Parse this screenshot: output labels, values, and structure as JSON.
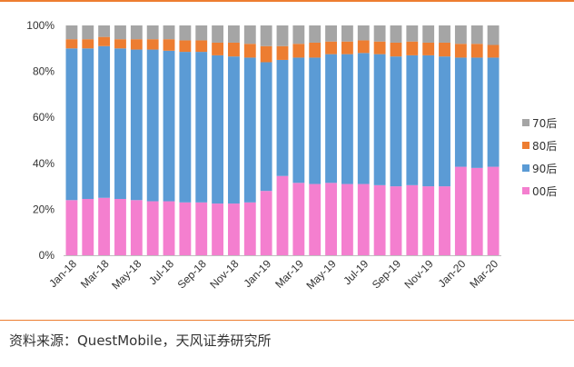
{
  "chart_data": {
    "type": "bar",
    "stacked": true,
    "percent": true,
    "categories": [
      "Jan-18",
      "Feb-18",
      "Mar-18",
      "Apr-18",
      "May-18",
      "Jun-18",
      "Jul-18",
      "Aug-18",
      "Sep-18",
      "Oct-18",
      "Nov-18",
      "Dec-18",
      "Jan-19",
      "Feb-19",
      "Mar-19",
      "Apr-19",
      "May-19",
      "Jun-19",
      "Jul-19",
      "Aug-19",
      "Sep-19",
      "Oct-19",
      "Nov-19",
      "Dec-19",
      "Jan-20",
      "Feb-20",
      "Mar-20"
    ],
    "x_tick_labels": [
      "Jan-18",
      "Mar-18",
      "May-18",
      "Jul-18",
      "Sep-18",
      "Nov-18",
      "Jan-19",
      "Mar-19",
      "May-19",
      "Jul-19",
      "Sep-19",
      "Nov-19",
      "Jan-20",
      "Mar-20"
    ],
    "y_tick_labels": [
      "0%",
      "20%",
      "40%",
      "60%",
      "80%",
      "100%"
    ],
    "ylim": [
      0,
      100
    ],
    "series": [
      {
        "name": "00后",
        "color": "#F47FCF",
        "values": [
          24,
          24.5,
          25,
          24.5,
          24,
          23.5,
          23.5,
          23,
          23,
          22.5,
          22.5,
          23,
          28,
          34.5,
          31.5,
          31,
          31.5,
          31,
          31,
          30.5,
          30,
          30.5,
          30,
          30,
          38.5,
          38,
          38.5
        ]
      },
      {
        "name": "90后",
        "color": "#5B9BD5",
        "values": [
          66,
          65.5,
          66,
          65.5,
          65.5,
          66,
          65.5,
          65.5,
          65.5,
          64.5,
          64,
          63,
          56,
          50.5,
          54.5,
          55,
          56,
          56.5,
          57,
          57,
          56.5,
          56.5,
          57,
          56.5,
          47.5,
          48,
          47.5
        ]
      },
      {
        "name": "80后",
        "color": "#ED7D31",
        "values": [
          4,
          4,
          4,
          4,
          4.5,
          4.5,
          5,
          5,
          5,
          5.5,
          6,
          6,
          7,
          6,
          6,
          6.5,
          5.5,
          5.5,
          5.5,
          5.5,
          6,
          6,
          5.5,
          6,
          6,
          6,
          5.5
        ]
      },
      {
        "name": "70后",
        "color": "#A5A5A5",
        "values": [
          6,
          6,
          5,
          6,
          6,
          6,
          6,
          6.5,
          6.5,
          7.5,
          7.5,
          8,
          9,
          9,
          8,
          7.5,
          7,
          7,
          6.5,
          7,
          7.5,
          7,
          7.5,
          7.5,
          8,
          8,
          8.5
        ]
      }
    ],
    "legend_order": [
      "70后",
      "80后",
      "90后",
      "00后"
    ],
    "legend_position": "right"
  },
  "source": "资料来源：QuestMobile，天风证券研究所"
}
